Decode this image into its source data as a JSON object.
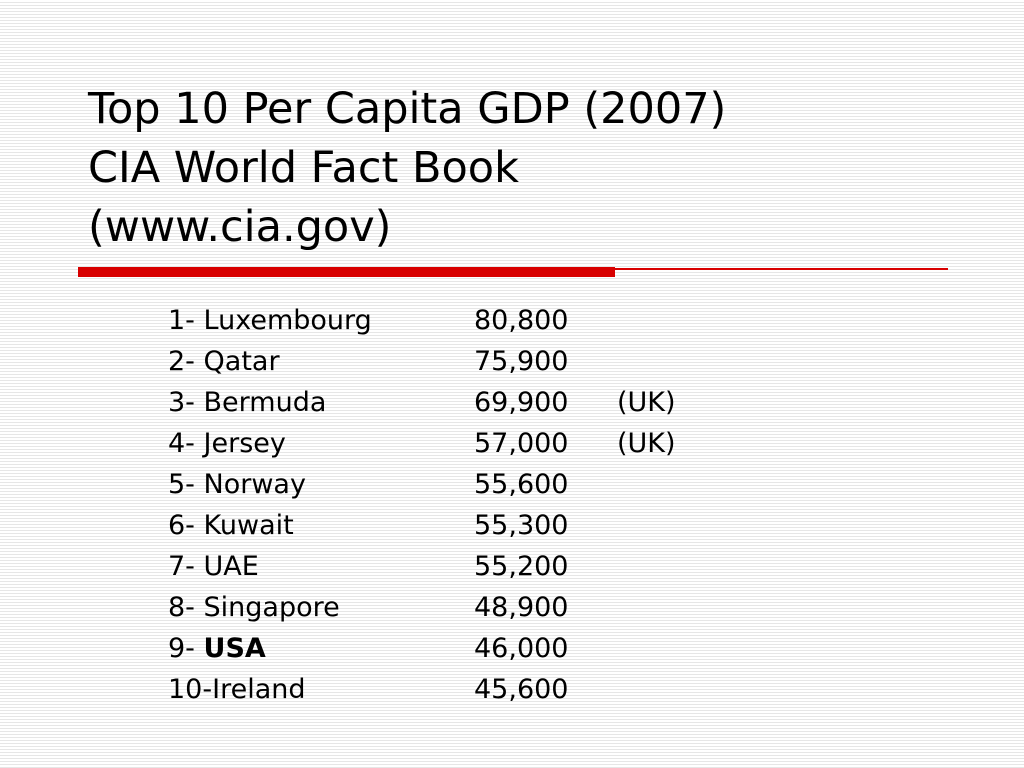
{
  "colors": {
    "accent": "#d80000",
    "text": "#000000",
    "background": "#ffffff",
    "stripe": "#e6e6e6"
  },
  "title": {
    "line1": "Top 10 Per Capita GDP (2007)",
    "line2": "CIA World Fact Book",
    "line3": "(www.cia.gov)"
  },
  "rankings": [
    {
      "prefix": "1- ",
      "country": "Luxembourg",
      "value": "80,800",
      "note": "",
      "bold": false
    },
    {
      "prefix": "2- ",
      "country": "Qatar",
      "value": "75,900",
      "note": "",
      "bold": false
    },
    {
      "prefix": "3- ",
      "country": "Bermuda",
      "value": "69,900",
      "note": "(UK)",
      "bold": false
    },
    {
      "prefix": "4- ",
      "country": "Jersey",
      "value": "57,000",
      "note": "(UK)",
      "bold": false
    },
    {
      "prefix": "5- ",
      "country": "Norway",
      "value": "55,600",
      "note": "",
      "bold": false
    },
    {
      "prefix": "6- ",
      "country": "Kuwait",
      "value": "55,300",
      "note": "",
      "bold": false
    },
    {
      "prefix": "7- ",
      "country": "UAE",
      "value": "55,200",
      "note": "",
      "bold": false
    },
    {
      "prefix": "8- ",
      "country": "Singapore",
      "value": "48,900",
      "note": "",
      "bold": false
    },
    {
      "prefix": "9- ",
      "country": "USA",
      "value": "46,000",
      "note": "",
      "bold": true
    },
    {
      "prefix": "10-",
      "country": "Ireland",
      "value": "45,600",
      "note": "",
      "bold": false
    }
  ]
}
